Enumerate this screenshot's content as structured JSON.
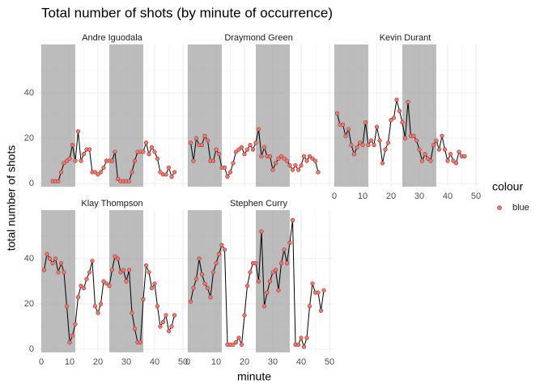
{
  "chart_data": {
    "type": "line",
    "title": "Total number of shots (by minute of occurrence)",
    "x_label": "minute",
    "y_label": "total number of shots",
    "legend": {
      "title": "colour",
      "entries": [
        {
          "name": "blue",
          "color": "#F8766D"
        }
      ]
    },
    "line_color": "#000000",
    "x": [
      1,
      2,
      3,
      4,
      5,
      6,
      7,
      8,
      9,
      10,
      11,
      12,
      13,
      14,
      15,
      16,
      17,
      18,
      19,
      20,
      21,
      22,
      23,
      24,
      25,
      26,
      27,
      28,
      29,
      30,
      31,
      32,
      33,
      34,
      35,
      36,
      37,
      38,
      39,
      40,
      41,
      42,
      43,
      44,
      45,
      46,
      47,
      48
    ],
    "shaded": [
      [
        0,
        12
      ],
      [
        24,
        36
      ]
    ],
    "facets": [
      {
        "title": "Andre Iguodala",
        "values": [
          null,
          null,
          null,
          1,
          1,
          1,
          5,
          9,
          10,
          11,
          17,
          10,
          23,
          10,
          13,
          15,
          15,
          5,
          5,
          4,
          5,
          7,
          10,
          10,
          10,
          14,
          2,
          1,
          1,
          1,
          1,
          5,
          10,
          14,
          14,
          14,
          18,
          13,
          16,
          14,
          11,
          5,
          4,
          4,
          7,
          3,
          5,
          null
        ]
      },
      {
        "title": "Draymond Green",
        "values": [
          18,
          10,
          20,
          17,
          17,
          21,
          19,
          10,
          10,
          15,
          13,
          7,
          7,
          3,
          5,
          9,
          14,
          15,
          16,
          13,
          15,
          17,
          15,
          18,
          24,
          12,
          16,
          12,
          12,
          6,
          9,
          11,
          12,
          11,
          10,
          8,
          6,
          8,
          6,
          8,
          12,
          10,
          12,
          11,
          10,
          5,
          null,
          null
        ]
      },
      {
        "title": "Kevin Durant",
        "values": [
          31,
          26,
          26,
          21,
          24,
          17,
          13,
          16,
          18,
          17,
          27,
          17,
          19,
          17,
          25,
          19,
          9,
          15,
          18,
          28,
          29,
          37,
          32,
          27,
          20,
          36,
          21,
          21,
          19,
          15,
          10,
          13,
          11,
          10,
          17,
          19,
          15,
          21,
          15,
          10,
          13,
          10,
          9,
          14,
          12,
          12,
          null,
          null
        ]
      },
      {
        "title": "Klay Thompson",
        "values": [
          35,
          42,
          40,
          38,
          40,
          34,
          38,
          34,
          19,
          3,
          6,
          11,
          23,
          28,
          27,
          31,
          34,
          39,
          19,
          16,
          20,
          30,
          29,
          28,
          35,
          41,
          40,
          34,
          35,
          30,
          35,
          16,
          9,
          3,
          3,
          22,
          37,
          34,
          27,
          29,
          19,
          10,
          12,
          15,
          8,
          10,
          15,
          null
        ]
      },
      {
        "title": "Stephen Curry",
        "values": [
          21,
          27,
          31,
          40,
          33,
          29,
          27,
          23,
          34,
          38,
          42,
          46,
          44,
          2,
          2,
          2,
          3,
          5,
          2,
          15,
          28,
          34,
          38,
          38,
          30,
          52,
          19,
          25,
          30,
          34,
          35,
          26,
          38,
          44,
          38,
          47,
          57,
          2,
          2,
          5,
          1,
          5,
          19,
          29,
          25,
          25,
          17,
          26
        ]
      }
    ],
    "xlim": [
      0,
      50
    ],
    "xticks": [
      0,
      10,
      20,
      30,
      40,
      50
    ],
    "ylim": [
      0,
      60
    ],
    "yticks": [
      0,
      20,
      40
    ],
    "grid": true
  }
}
